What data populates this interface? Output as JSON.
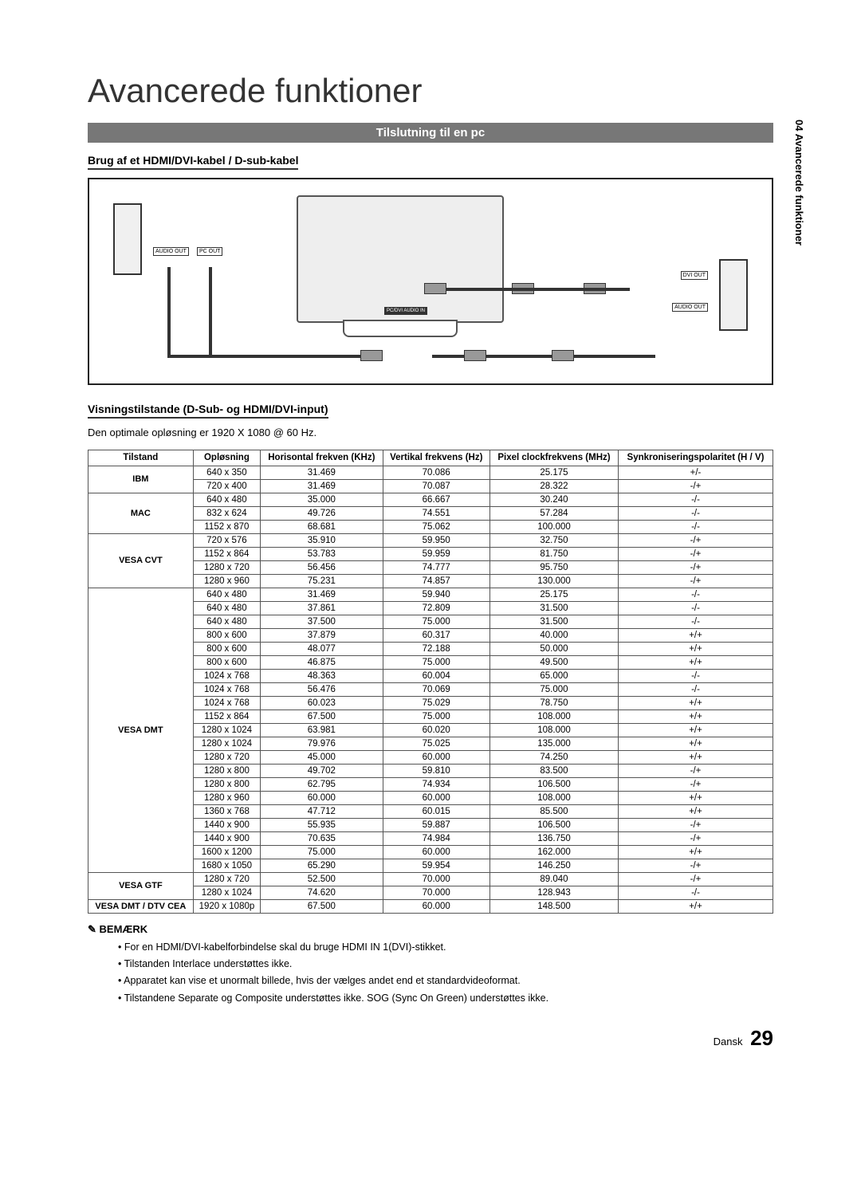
{
  "side_tab": "04   Avancerede funktioner",
  "page_title": "Avancerede funktioner",
  "section_bar": "Tilslutning til en pc",
  "subheading_cable": "Brug af et HDMI/DVI-kabel / D-sub-kabel",
  "subheading_modes": "Visningstilstande (D-Sub- og HDMI/DVI-input)",
  "optimal_line": "Den optimale opløsning er 1920 X 1080 @ 60 Hz.",
  "diagram_labels": {
    "audio_out": "AUDIO OUT",
    "pc_out": "PC OUT",
    "dvi_out": "DVI OUT",
    "pc_dvi_audio_in": "PC/DVI AUDIO IN"
  },
  "table": {
    "headers": {
      "mode": "Tilstand",
      "resolution": "Opløsning",
      "hfreq": "Horisontal frekven\n(KHz)",
      "vfreq": "Vertikal frekvens\n(Hz)",
      "pclock": "Pixel clockfrekvens\n(MHz)",
      "syncpol": "Synkroniseringspolaritet\n(H / V)"
    },
    "groups": [
      {
        "mode": "IBM",
        "rows": [
          [
            "640 x 350",
            "31.469",
            "70.086",
            "25.175",
            "+/-"
          ],
          [
            "720 x 400",
            "31.469",
            "70.087",
            "28.322",
            "-/+"
          ]
        ]
      },
      {
        "mode": "MAC",
        "rows": [
          [
            "640 x 480",
            "35.000",
            "66.667",
            "30.240",
            "-/-"
          ],
          [
            "832 x 624",
            "49.726",
            "74.551",
            "57.284",
            "-/-"
          ],
          [
            "1152 x 870",
            "68.681",
            "75.062",
            "100.000",
            "-/-"
          ]
        ]
      },
      {
        "mode": "VESA CVT",
        "rows": [
          [
            "720 x 576",
            "35.910",
            "59.950",
            "32.750",
            "-/+"
          ],
          [
            "1152 x 864",
            "53.783",
            "59.959",
            "81.750",
            "-/+"
          ],
          [
            "1280 x 720",
            "56.456",
            "74.777",
            "95.750",
            "-/+"
          ],
          [
            "1280 x 960",
            "75.231",
            "74.857",
            "130.000",
            "-/+"
          ]
        ]
      },
      {
        "mode": "VESA DMT",
        "rows": [
          [
            "640 x 480",
            "31.469",
            "59.940",
            "25.175",
            "-/-"
          ],
          [
            "640 x 480",
            "37.861",
            "72.809",
            "31.500",
            "-/-"
          ],
          [
            "640 x 480",
            "37.500",
            "75.000",
            "31.500",
            "-/-"
          ],
          [
            "800 x 600",
            "37.879",
            "60.317",
            "40.000",
            "+/+"
          ],
          [
            "800 x 600",
            "48.077",
            "72.188",
            "50.000",
            "+/+"
          ],
          [
            "800 x 600",
            "46.875",
            "75.000",
            "49.500",
            "+/+"
          ],
          [
            "1024 x 768",
            "48.363",
            "60.004",
            "65.000",
            "-/-"
          ],
          [
            "1024 x 768",
            "56.476",
            "70.069",
            "75.000",
            "-/-"
          ],
          [
            "1024 x 768",
            "60.023",
            "75.029",
            "78.750",
            "+/+"
          ],
          [
            "1152 x 864",
            "67.500",
            "75.000",
            "108.000",
            "+/+"
          ],
          [
            "1280 x 1024",
            "63.981",
            "60.020",
            "108.000",
            "+/+"
          ],
          [
            "1280 x 1024",
            "79.976",
            "75.025",
            "135.000",
            "+/+"
          ],
          [
            "1280 x 720",
            "45.000",
            "60.000",
            "74.250",
            "+/+"
          ],
          [
            "1280 x 800",
            "49.702",
            "59.810",
            "83.500",
            "-/+"
          ],
          [
            "1280 x 800",
            "62.795",
            "74.934",
            "106.500",
            "-/+"
          ],
          [
            "1280 x 960",
            "60.000",
            "60.000",
            "108.000",
            "+/+"
          ],
          [
            "1360 x 768",
            "47.712",
            "60.015",
            "85.500",
            "+/+"
          ],
          [
            "1440 x 900",
            "55.935",
            "59.887",
            "106.500",
            "-/+"
          ],
          [
            "1440 x 900",
            "70.635",
            "74.984",
            "136.750",
            "-/+"
          ],
          [
            "1600 x 1200",
            "75.000",
            "60.000",
            "162.000",
            "+/+"
          ],
          [
            "1680 x 1050",
            "65.290",
            "59.954",
            "146.250",
            "-/+"
          ]
        ]
      },
      {
        "mode": "VESA GTF",
        "rows": [
          [
            "1280 x 720",
            "52.500",
            "70.000",
            "89.040",
            "-/+"
          ],
          [
            "1280 x 1024",
            "74.620",
            "70.000",
            "128.943",
            "-/-"
          ]
        ]
      },
      {
        "mode": "VESA DMT / DTV CEA",
        "rows": [
          [
            "1920 x 1080p",
            "67.500",
            "60.000",
            "148.500",
            "+/+"
          ]
        ]
      }
    ]
  },
  "notes_heading": "BEMÆRK",
  "notes": [
    "For en HDMI/DVI-kabelforbindelse skal du bruge HDMI IN 1(DVI)-stikket.",
    "Tilstanden Interlace understøttes ikke.",
    "Apparatet kan vise et unormalt billede, hvis der vælges andet end et standardvideoformat.",
    "Tilstandene Separate og Composite understøttes ikke. SOG (Sync On Green) understøttes ikke."
  ],
  "footer_lang": "Dansk",
  "footer_page": "29",
  "colors": {
    "bar_bg": "#777777",
    "border": "#555555"
  }
}
